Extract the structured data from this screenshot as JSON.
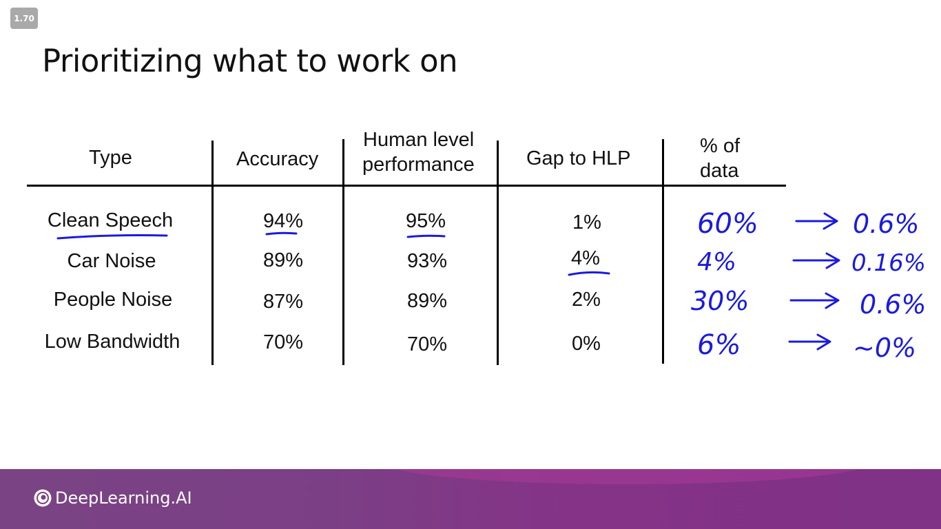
{
  "player": {
    "speed": "1.70"
  },
  "slide": {
    "title": "Prioritizing what to work on",
    "headers": {
      "type": "Type",
      "accuracy": "Accuracy",
      "hlp_line1": "Human level",
      "hlp_line2": "performance",
      "gap": "Gap to HLP",
      "data_line1": "% of",
      "data_line2": "data"
    },
    "rows": [
      {
        "type": "Clean Speech",
        "accuracy": "94%",
        "hlp": "95%",
        "gap": "1%"
      },
      {
        "type": "Car Noise",
        "accuracy": "89%",
        "hlp": "93%",
        "gap": "4%"
      },
      {
        "type": "People Noise",
        "accuracy": "87%",
        "hlp": "89%",
        "gap": "2%"
      },
      {
        "type": "Low Bandwidth",
        "accuracy": "70%",
        "hlp": "70%",
        "gap": "0%"
      }
    ],
    "annotations": [
      {
        "data_pct": "60%",
        "result": "0.6%"
      },
      {
        "data_pct": "4%",
        "result": "0.16%"
      },
      {
        "data_pct": "30%",
        "result": "0.6%"
      },
      {
        "data_pct": "6%",
        "result": "~0%"
      }
    ],
    "ink_color": "#1a1adf"
  },
  "footer": {
    "brand": "DeepLearning.AI"
  }
}
